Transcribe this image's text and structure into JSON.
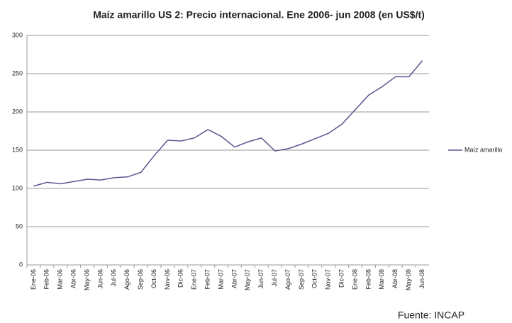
{
  "chart_data": {
    "type": "line",
    "title": "Maíz amarillo  US 2: Precio internacional.  Ene 2006- jun 2008 (en US$/t)",
    "categories": [
      "Ene-06",
      "Feb-06",
      "Mar-06",
      "Abr-06",
      "May-06",
      "Jun-06",
      "Jul-06",
      "Ago-06",
      "Sep-06",
      "Oct-06",
      "Nov-06",
      "Dic-06",
      "Ene-07",
      "Feb-07",
      "Mar-07",
      "Abr-07",
      "May-07",
      "Jun-07",
      "Jul-07",
      "Ago-07",
      "Sep-07",
      "Oct-07",
      "Nov-07",
      "Dic-07",
      "Ene-08",
      "Feb-08",
      "Mar-08",
      "Abr-08",
      "May-08",
      "Jun-08"
    ],
    "series": [
      {
        "name": "Maíz amarillo",
        "color": "#5b5592",
        "values": [
          103,
          108,
          106,
          109,
          112,
          111,
          114,
          115,
          121,
          143,
          163,
          162,
          166,
          177,
          168,
          154,
          161,
          166,
          149,
          152,
          158,
          165,
          172,
          184,
          203,
          222,
          233,
          246,
          246,
          267
        ]
      }
    ],
    "ylim": [
      0,
      300
    ],
    "yticks": [
      0,
      50,
      100,
      150,
      200,
      250,
      300
    ],
    "grid": true,
    "legend": "right",
    "source": "Fuente: INCAP"
  }
}
